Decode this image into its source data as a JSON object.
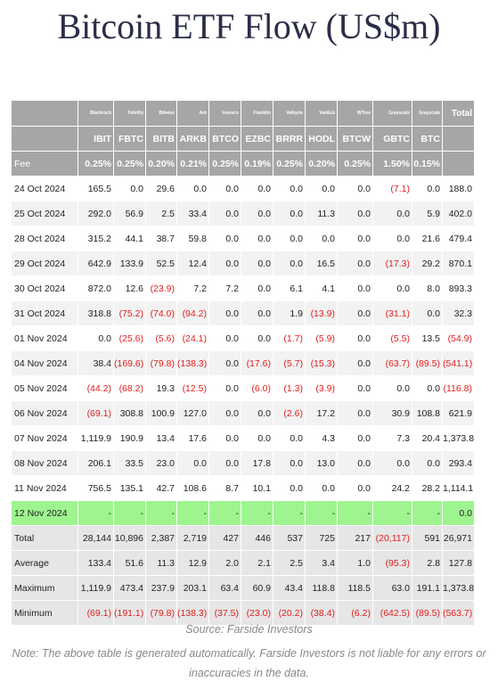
{
  "title": "Bitcoin ETF Flow (US$m)",
  "table": {
    "issuers": [
      "Blackrock",
      "Fidelity",
      "Bitwise",
      "Ark",
      "Invesco",
      "Franklin",
      "Valkyrie",
      "VanEck",
      "WTree",
      "Grayscale",
      "Grayscale"
    ],
    "total_header": "Total",
    "tickers": [
      "IBIT",
      "FBTC",
      "BITB",
      "ARKB",
      "BTCO",
      "EZBC",
      "BRRR",
      "HODL",
      "BTCW",
      "GBTC",
      "BTC"
    ],
    "fee": {
      "label": "Fee",
      "values": [
        "0.25%",
        "0.25%",
        "0.20%",
        "0.21%",
        "0.25%",
        "0.19%",
        "0.25%",
        "0.20%",
        "0.25%",
        "1.50%",
        "0.15%"
      ]
    },
    "rows": [
      {
        "label": "24 Oct 2024",
        "values": [
          "165.5",
          "0.0",
          "29.6",
          "0.0",
          "0.0",
          "0.0",
          "0.0",
          "0.0",
          "0.0",
          "(7.1)",
          "0.0",
          "188.0"
        ]
      },
      {
        "label": "25 Oct 2024",
        "values": [
          "292.0",
          "56.9",
          "2.5",
          "33.4",
          "0.0",
          "0.0",
          "0.0",
          "11.3",
          "0.0",
          "0.0",
          "5.9",
          "402.0"
        ]
      },
      {
        "label": "28 Oct 2024",
        "values": [
          "315.2",
          "44.1",
          "38.7",
          "59.8",
          "0.0",
          "0.0",
          "0.0",
          "0.0",
          "0.0",
          "0.0",
          "21.6",
          "479.4"
        ]
      },
      {
        "label": "29 Oct 2024",
        "values": [
          "642.9",
          "133.9",
          "52.5",
          "12.4",
          "0.0",
          "0.0",
          "0.0",
          "16.5",
          "0.0",
          "(17.3)",
          "29.2",
          "870.1"
        ]
      },
      {
        "label": "30 Oct 2024",
        "values": [
          "872.0",
          "12.6",
          "(23.9)",
          "7.2",
          "7.2",
          "0.0",
          "6.1",
          "4.1",
          "0.0",
          "0.0",
          "8.0",
          "893.3"
        ]
      },
      {
        "label": "31 Oct 2024",
        "values": [
          "318.8",
          "(75.2)",
          "(74.0)",
          "(94.2)",
          "0.0",
          "0.0",
          "1.9",
          "(13.9)",
          "0.0",
          "(31.1)",
          "0.0",
          "32.3"
        ]
      },
      {
        "label": "01 Nov 2024",
        "values": [
          "0.0",
          "(25.6)",
          "(5.6)",
          "(24.1)",
          "0.0",
          "0.0",
          "(1.7)",
          "(5.9)",
          "0.0",
          "(5.5)",
          "13.5",
          "(54.9)"
        ]
      },
      {
        "label": "04 Nov 2024",
        "values": [
          "38.4",
          "(169.6)",
          "(79.8)",
          "(138.3)",
          "0.0",
          "(17.6)",
          "(5.7)",
          "(15.3)",
          "0.0",
          "(63.7)",
          "(89.5)",
          "(541.1)"
        ]
      },
      {
        "label": "05 Nov 2024",
        "values": [
          "(44.2)",
          "(68.2)",
          "19.3",
          "(12.5)",
          "0.0",
          "(6.0)",
          "(1.3)",
          "(3.9)",
          "0.0",
          "0.0",
          "0.0",
          "(116.8)"
        ]
      },
      {
        "label": "06 Nov 2024",
        "values": [
          "(69.1)",
          "308.8",
          "100.9",
          "127.0",
          "0.0",
          "0.0",
          "(2.6)",
          "17.2",
          "0.0",
          "30.9",
          "108.8",
          "621.9"
        ]
      },
      {
        "label": "07 Nov 2024",
        "values": [
          "1,119.9",
          "190.9",
          "13.4",
          "17.6",
          "0.0",
          "0.0",
          "0.0",
          "4.3",
          "0.0",
          "7.3",
          "20.4",
          "1,373.8"
        ]
      },
      {
        "label": "08 Nov 2024",
        "values": [
          "206.1",
          "33.5",
          "23.0",
          "0.0",
          "0.0",
          "17.8",
          "0.0",
          "13.0",
          "0.0",
          "0.0",
          "0.0",
          "293.4"
        ]
      },
      {
        "label": "11 Nov 2024",
        "values": [
          "756.5",
          "135.1",
          "42.7",
          "108.6",
          "8.7",
          "10.1",
          "0.0",
          "0.0",
          "0.0",
          "24.2",
          "28.2",
          "1,114.1"
        ]
      },
      {
        "label": "12 Nov 2024",
        "values": [
          "-",
          "-",
          "-",
          "-",
          "-",
          "-",
          "-",
          "-",
          "-",
          "-",
          "-",
          "0.0"
        ]
      }
    ],
    "summary": [
      {
        "label": "Total",
        "values": [
          "28,144",
          "10,896",
          "2,387",
          "2,719",
          "427",
          "446",
          "537",
          "725",
          "217",
          "(20,117)",
          "591",
          "26,971"
        ]
      },
      {
        "label": "Average",
        "values": [
          "133.4",
          "51.6",
          "11.3",
          "12.9",
          "2.0",
          "2.1",
          "2.5",
          "3.4",
          "1.0",
          "(95.3)",
          "2.8",
          "127.8"
        ]
      },
      {
        "label": "Maximum",
        "values": [
          "1,119.9",
          "473.4",
          "237.9",
          "203.1",
          "63.4",
          "60.9",
          "43.4",
          "118.8",
          "118.5",
          "63.0",
          "191.1",
          "1,373.8"
        ]
      },
      {
        "label": "Minimum",
        "values": [
          "(69.1)",
          "(191.1)",
          "(79.8)",
          "(138.3)",
          "(37.5)",
          "(23.0)",
          "(20.2)",
          "(38.4)",
          "(6.2)",
          "(642.5)",
          "(89.5)",
          "(563.7)"
        ]
      }
    ]
  },
  "source": "Source: Farside Investors",
  "note": "Note: The above table is generated automatically. Farside Investors is not liable for any errors or inaccuracies in the data."
}
